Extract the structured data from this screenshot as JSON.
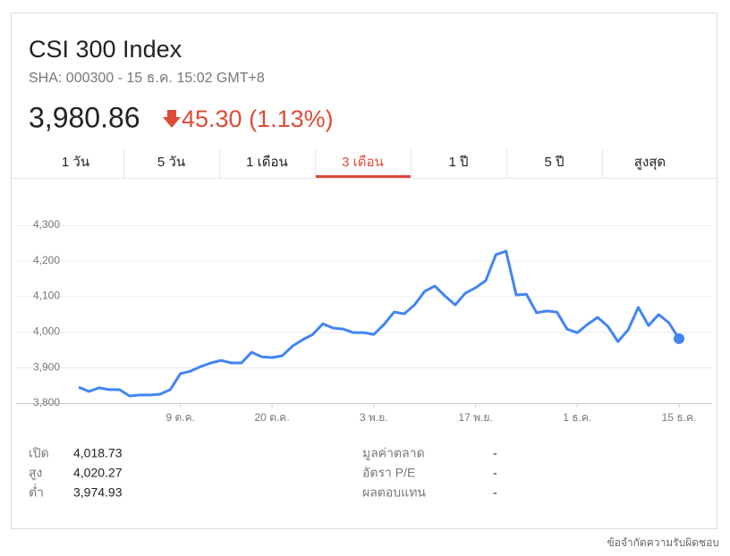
{
  "header": {
    "title": "CSI 300 Index",
    "subtitle": "SHA: 000300 - 15 ธ.ค. 15:02 GMT+8",
    "price": "3,980.86",
    "change": "45.30 (1.13%)"
  },
  "tabs": [
    "1 วัน",
    "5 วัน",
    "1 เดือน",
    "3 เดือน",
    "1 ปี",
    "5 ปี",
    "สูงสุด"
  ],
  "selected_tab": "3 เดือน",
  "chart_data": {
    "type": "line",
    "categories": [
      null,
      null,
      null,
      null,
      null,
      null,
      null,
      null,
      null,
      null,
      "9 ต.ค.",
      null,
      null,
      null,
      null,
      null,
      null,
      null,
      null,
      "20 ต.ค.",
      null,
      null,
      null,
      null,
      null,
      null,
      null,
      null,
      null,
      "3 พ.ย.",
      null,
      null,
      null,
      null,
      null,
      null,
      null,
      null,
      null,
      "17 พ.ย.",
      null,
      null,
      null,
      null,
      null,
      null,
      null,
      null,
      null,
      "1 ธ.ค.",
      null,
      null,
      null,
      null,
      null,
      null,
      null,
      null,
      null,
      "15 ธ.ค."
    ],
    "series": [
      {
        "color": "#4285f4",
        "values": [
          3845,
          3833,
          3843,
          3838,
          3838,
          3820,
          3823,
          3823,
          3825,
          3838,
          3883,
          3890,
          3903,
          3913,
          3920,
          3913,
          3913,
          3943,
          3930,
          3928,
          3933,
          3960,
          3978,
          3993,
          4023,
          4011,
          4008,
          3998,
          3998,
          3993,
          4021,
          4056,
          4051,
          4076,
          4114,
          4129,
          4101,
          4076,
          4109,
          4124,
          4144,
          4217,
          4227,
          4104,
          4106,
          4054,
          4059,
          4056,
          4008,
          3998,
          4021,
          4041,
          4016,
          3973,
          4006,
          4069,
          4018,
          4049,
          4026,
          3981
        ]
      }
    ],
    "ylim": [
      3800,
      4360
    ],
    "yticks": [
      {
        "value": 3800,
        "label": "3,800"
      },
      {
        "value": 3900,
        "label": "3,900"
      },
      {
        "value": 4000,
        "label": "4,000"
      },
      {
        "value": 4100,
        "label": "4,100"
      },
      {
        "value": 4200,
        "label": "4,200"
      },
      {
        "value": 4300,
        "label": "4,300"
      }
    ],
    "grid": true
  },
  "stats": {
    "left": [
      [
        "เปิด",
        "4,018.73"
      ],
      [
        "สูง",
        "4,020.27"
      ],
      [
        "ต่ำ",
        "3,974.93"
      ]
    ],
    "right": [
      [
        "มูลค่าตลาด",
        "-"
      ],
      [
        "อัตรา P/E",
        "-"
      ],
      [
        "ผลตอบแทน",
        "-"
      ]
    ]
  },
  "footer": "ข้อจำกัดความรับผิดชอบ"
}
